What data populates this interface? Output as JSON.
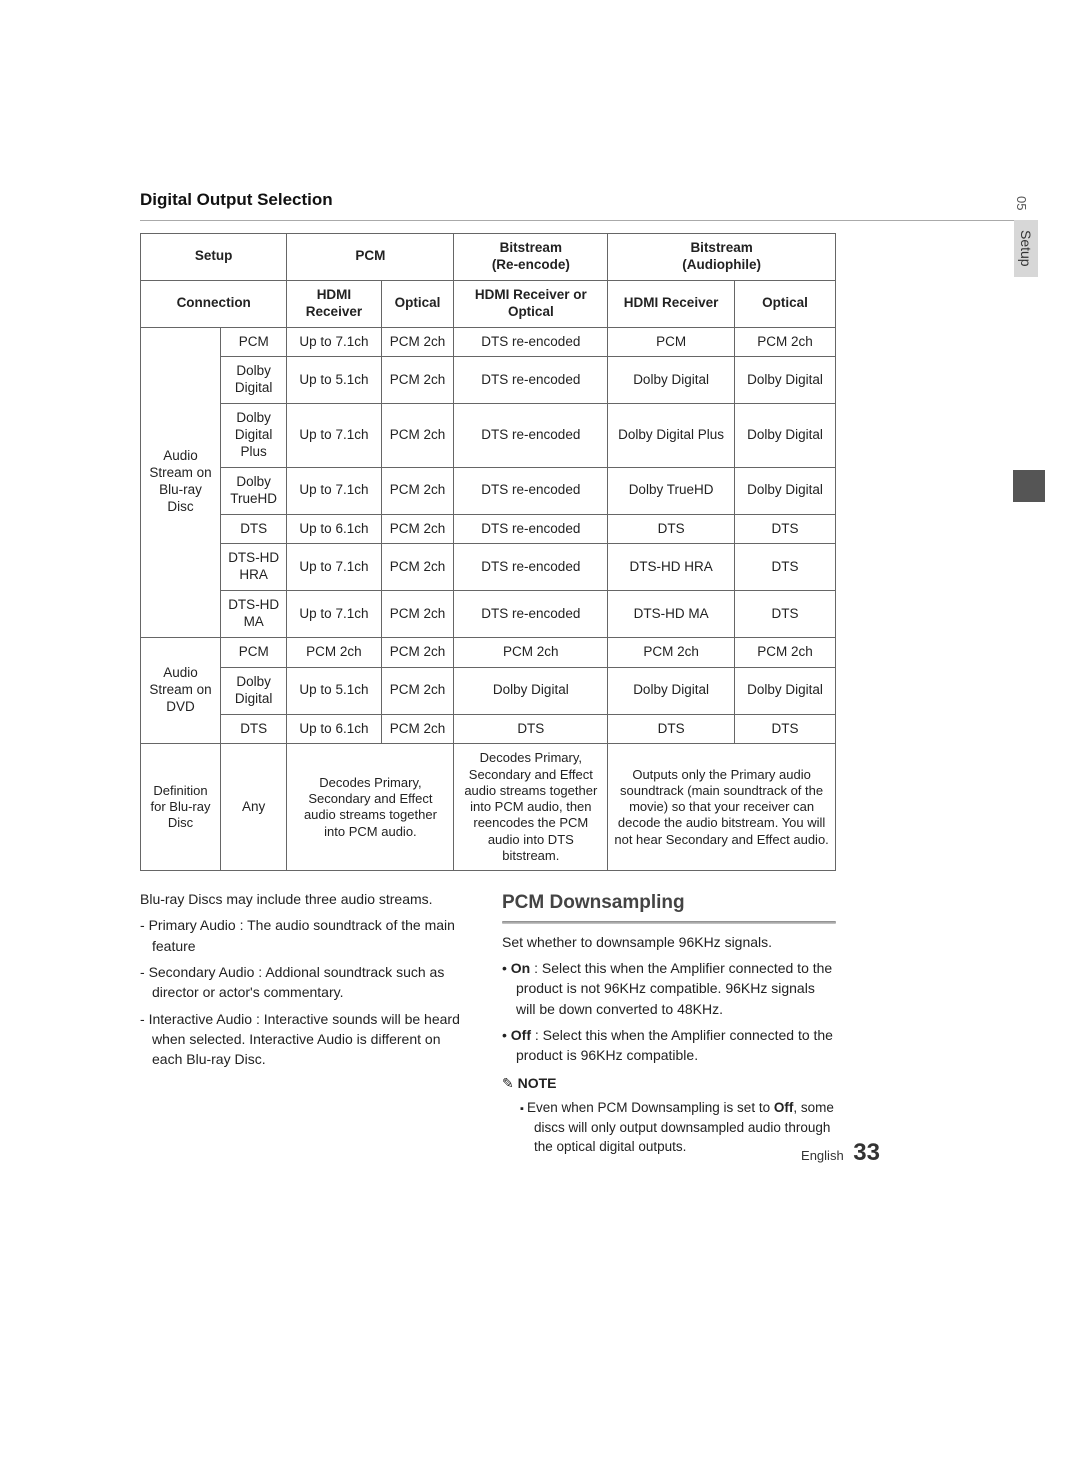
{
  "side": {
    "chapter": "05",
    "label": "Setup"
  },
  "title": "Digital Output Selection",
  "table": {
    "header1": {
      "setup": "Setup",
      "pcm": "PCM",
      "reenc": "Bitstream",
      "reenc_sub": "(Re-encode)",
      "audiophile": "Bitstream",
      "audiophile_sub": "(Audiophile)"
    },
    "header2": {
      "conn": "Connection",
      "hdmi": "HDMI Receiver",
      "optical": "Optical",
      "hdmi_or_opt": "HDMI Receiver or Optical",
      "hdmi2": "HDMI Receiver",
      "optical2": "Optical"
    },
    "group1": {
      "label": "Audio Stream on Blu-ray Disc",
      "rows": [
        {
          "c0": "PCM",
          "c1": "Up to 7.1ch",
          "c2": "PCM 2ch",
          "c3": "DTS re-encoded",
          "c4": "PCM",
          "c5": "PCM 2ch"
        },
        {
          "c0": "Dolby Digital",
          "c1": "Up to 5.1ch",
          "c2": "PCM 2ch",
          "c3": "DTS re-encoded",
          "c4": "Dolby Digital",
          "c5": "Dolby Digital"
        },
        {
          "c0": "Dolby Digital Plus",
          "c1": "Up to 7.1ch",
          "c2": "PCM 2ch",
          "c3": "DTS re-encoded",
          "c4": "Dolby Digital Plus",
          "c5": "Dolby Digital"
        },
        {
          "c0": "Dolby TrueHD",
          "c1": "Up to 7.1ch",
          "c2": "PCM 2ch",
          "c3": "DTS re-encoded",
          "c4": "Dolby TrueHD",
          "c5": "Dolby Digital"
        },
        {
          "c0": "DTS",
          "c1": "Up to 6.1ch",
          "c2": "PCM 2ch",
          "c3": "DTS re-encoded",
          "c4": "DTS",
          "c5": "DTS"
        },
        {
          "c0": "DTS-HD HRA",
          "c1": "Up to 7.1ch",
          "c2": "PCM 2ch",
          "c3": "DTS re-encoded",
          "c4": "DTS-HD HRA",
          "c5": "DTS"
        },
        {
          "c0": "DTS-HD MA",
          "c1": "Up to 7.1ch",
          "c2": "PCM 2ch",
          "c3": "DTS re-encoded",
          "c4": "DTS-HD MA",
          "c5": "DTS"
        }
      ]
    },
    "group2": {
      "label": "Audio Stream on DVD",
      "rows": [
        {
          "c0": "PCM",
          "c1": "PCM 2ch",
          "c2": "PCM 2ch",
          "c3": "PCM 2ch",
          "c4": "PCM 2ch",
          "c5": "PCM 2ch"
        },
        {
          "c0": "Dolby Digital",
          "c1": "Up to 5.1ch",
          "c2": "PCM 2ch",
          "c3": "Dolby Digital",
          "c4": "Dolby Digital",
          "c5": "Dolby Digital"
        },
        {
          "c0": "DTS",
          "c1": "Up to 6.1ch",
          "c2": "PCM 2ch",
          "c3": "DTS",
          "c4": "DTS",
          "c5": "DTS"
        }
      ]
    },
    "def": {
      "label": "Definition for Blu-ray Disc",
      "any": "Any",
      "pcm": "Decodes Primary, Secondary and Effect audio streams together into PCM audio.",
      "reenc": "Decodes Primary, Secondary and Effect audio streams together into PCM audio, then reencodes the PCM audio into DTS bitstream.",
      "audiophile": "Outputs only the Primary audio soundtrack (main soundtrack of the movie) so that your receiver can decode the audio bitstream. You will not hear Secondary and Effect audio."
    }
  },
  "left_col": {
    "intro": "Blu-ray Discs may include three audio streams.",
    "items": [
      "Primary Audio : The audio soundtrack of the main feature",
      "Secondary Audio : Addional soundtrack such as director or actor's commentary.",
      "Interactive Audio : Interactive sounds will be heard when selected. Interactive Audio is different on each Blu-ray Disc."
    ]
  },
  "right_col": {
    "heading": "PCM Downsampling",
    "intro": "Set whether to downsample 96KHz signals.",
    "on_label": "On",
    "on_text": " : Select this when the Amplifier connected to the product is not 96KHz compatible. 96KHz signals will be down converted to 48KHz.",
    "off_label": "Off",
    "off_text": " : Select this when the Amplifier connected to the product is 96KHz compatible.",
    "note_label": "NOTE",
    "note_pre": "Even when PCM Downsampling is set to ",
    "note_bold": "Off",
    "note_post": ", some discs will only output downsampled audio through the optical digital outputs."
  },
  "footer": {
    "lang": "English",
    "page": "33"
  }
}
